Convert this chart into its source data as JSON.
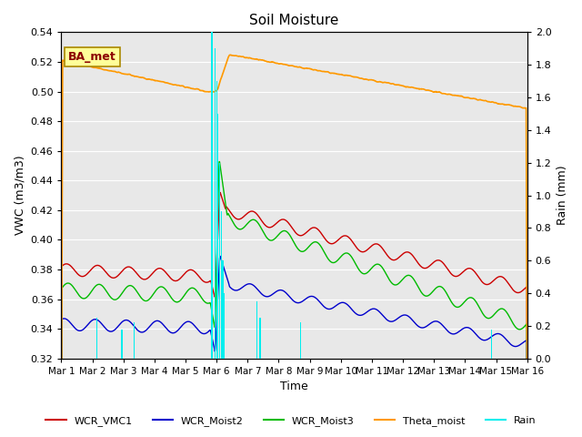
{
  "title": "Soil Moisture",
  "ylabel_left": "VWC (m3/m3)",
  "ylabel_right": "Rain (mm)",
  "xlabel": "Time",
  "annotation_text": "BA_met",
  "ylim_left": [
    0.32,
    0.54
  ],
  "ylim_right": [
    0.0,
    2.0
  ],
  "yticks_left": [
    0.32,
    0.34,
    0.36,
    0.38,
    0.4,
    0.42,
    0.44,
    0.46,
    0.48,
    0.5,
    0.52,
    0.54
  ],
  "yticks_right": [
    0.0,
    0.2,
    0.4,
    0.6,
    0.8,
    1.0,
    1.2,
    1.4,
    1.6,
    1.8,
    2.0
  ],
  "xtick_labels": [
    "Mar 1",
    "Mar 2",
    "Mar 3",
    "Mar 4",
    "Mar 5",
    "Mar 6",
    "Mar 7",
    "Mar 8",
    "Mar 9",
    "Mar 10",
    "Mar 11",
    "Mar 12",
    "Mar 13",
    "Mar 14",
    "Mar 15",
    "Mar 16"
  ],
  "xlim": [
    0,
    15
  ],
  "colors": {
    "WCR_VMC1": "#cc0000",
    "WCR_Moist2": "#0000cc",
    "WCR_Moist3": "#00bb00",
    "Theta_moist": "#ff9900",
    "Rain": "#00eeee",
    "background": "#e8e8e8",
    "grid": "#ffffff"
  },
  "rain_times": [
    1.15,
    1.95,
    2.35,
    4.85,
    4.95,
    5.0,
    5.05,
    5.1,
    5.15,
    5.2,
    5.25,
    6.3,
    6.4,
    7.7,
    13.85
  ],
  "rain_amounts": [
    0.25,
    0.18,
    0.22,
    2.0,
    1.9,
    1.7,
    1.5,
    1.2,
    0.9,
    0.6,
    0.4,
    0.35,
    0.25,
    0.22,
    0.18
  ],
  "legend_labels": [
    "WCR_VMC1",
    "WCR_Moist2",
    "WCR_Moist3",
    "Theta_moist",
    "Rain"
  ]
}
